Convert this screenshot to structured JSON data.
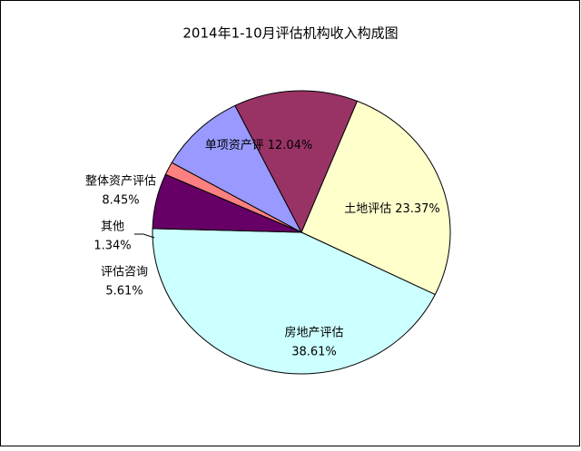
{
  "chart_data": {
    "type": "pie",
    "title": "2014年1-10月评估机构收入构成图",
    "categories": [
      "土地评估",
      "房地产评估",
      "评估咨询",
      "其他",
      "整体资产评估",
      "单项资产评"
    ],
    "values": [
      23.37,
      38.61,
      5.61,
      1.34,
      8.45,
      12.04
    ],
    "value_labels": [
      "23.37%",
      "38.61%",
      "5.61%",
      "1.34%",
      "8.45%",
      "12.04%"
    ],
    "colors": [
      "#ffffcc",
      "#ccffff",
      "#660066",
      "#ff8080",
      "#9999ff",
      "#993366"
    ]
  }
}
